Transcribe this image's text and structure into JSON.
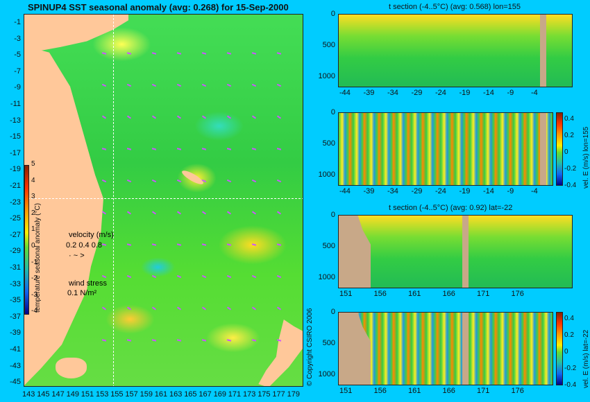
{
  "map": {
    "title": "SPINUP4 SST seasonal anomaly (avg: 0.268) for 15-Sep-2000",
    "lat_ticks": [
      "-1",
      "-3",
      "-5",
      "-7",
      "-9",
      "-11",
      "-13",
      "-15",
      "-17",
      "-19",
      "-21",
      "-23",
      "-25",
      "-27",
      "-29",
      "-31",
      "-33",
      "-35",
      "-37",
      "-39",
      "-41",
      "-43",
      "-45"
    ],
    "lon_ticks": [
      "143",
      "145",
      "147",
      "149",
      "151",
      "153",
      "155",
      "157",
      "159",
      "161",
      "163",
      "165",
      "167",
      "169",
      "171",
      "173",
      "175",
      "177",
      "179"
    ],
    "colorbar_ticks": [
      "5",
      "4",
      "3",
      "2",
      "1",
      "0",
      "-1",
      "-2",
      "-3",
      "-4"
    ],
    "colorbar_label": "temperature seasonal anomaly (°C)",
    "velocity_label": "velocity (m/s)",
    "velocity_scale": "0.2 0.4 0.8",
    "wind_label": "wind stress",
    "wind_scale": "0.1 N/m²",
    "copyright": "© Copyright CSIRO 2006",
    "crosshair": {
      "lon": 155,
      "lat": -22
    }
  },
  "panels": [
    {
      "title": "t section (-4..5°C) (avg: 0.568) lon=155",
      "x_ticks": [
        "-44",
        "-39",
        "-34",
        "-29",
        "-24",
        "-19",
        "-14",
        "-9",
        "-4"
      ],
      "y_ticks": [
        "0",
        "500",
        "1000"
      ],
      "side_label": "",
      "cbar_ticks": []
    },
    {
      "title": "",
      "x_ticks": [
        "-44",
        "-39",
        "-34",
        "-29",
        "-24",
        "-19",
        "-14",
        "-9",
        "-4"
      ],
      "y_ticks": [
        "0",
        "500",
        "1000"
      ],
      "side_label": "vel. E (m/s) lon=155",
      "cbar_ticks": [
        "0.4",
        "0.2",
        "0",
        "-0.2",
        "-0.4"
      ]
    },
    {
      "title": "t section (-4..5°C) (avg: 0.92) lat=-22",
      "x_ticks": [
        "151",
        "156",
        "161",
        "166",
        "171",
        "176"
      ],
      "y_ticks": [
        "0",
        "500",
        "1000"
      ],
      "side_label": "",
      "cbar_ticks": []
    },
    {
      "title": "",
      "x_ticks": [
        "151",
        "156",
        "161",
        "166",
        "171",
        "176"
      ],
      "y_ticks": [
        "0",
        "500",
        "1000"
      ],
      "side_label": "vel. E (m/s) lat=-22",
      "cbar_ticks": [
        "0.4",
        "0.2",
        "0",
        "-0.2",
        "-0.4"
      ]
    }
  ],
  "colors": {
    "background": "#00ccff",
    "land": "#ffc89a",
    "section_land": "#c8a888",
    "wind_arrow": "#cc55ff"
  }
}
